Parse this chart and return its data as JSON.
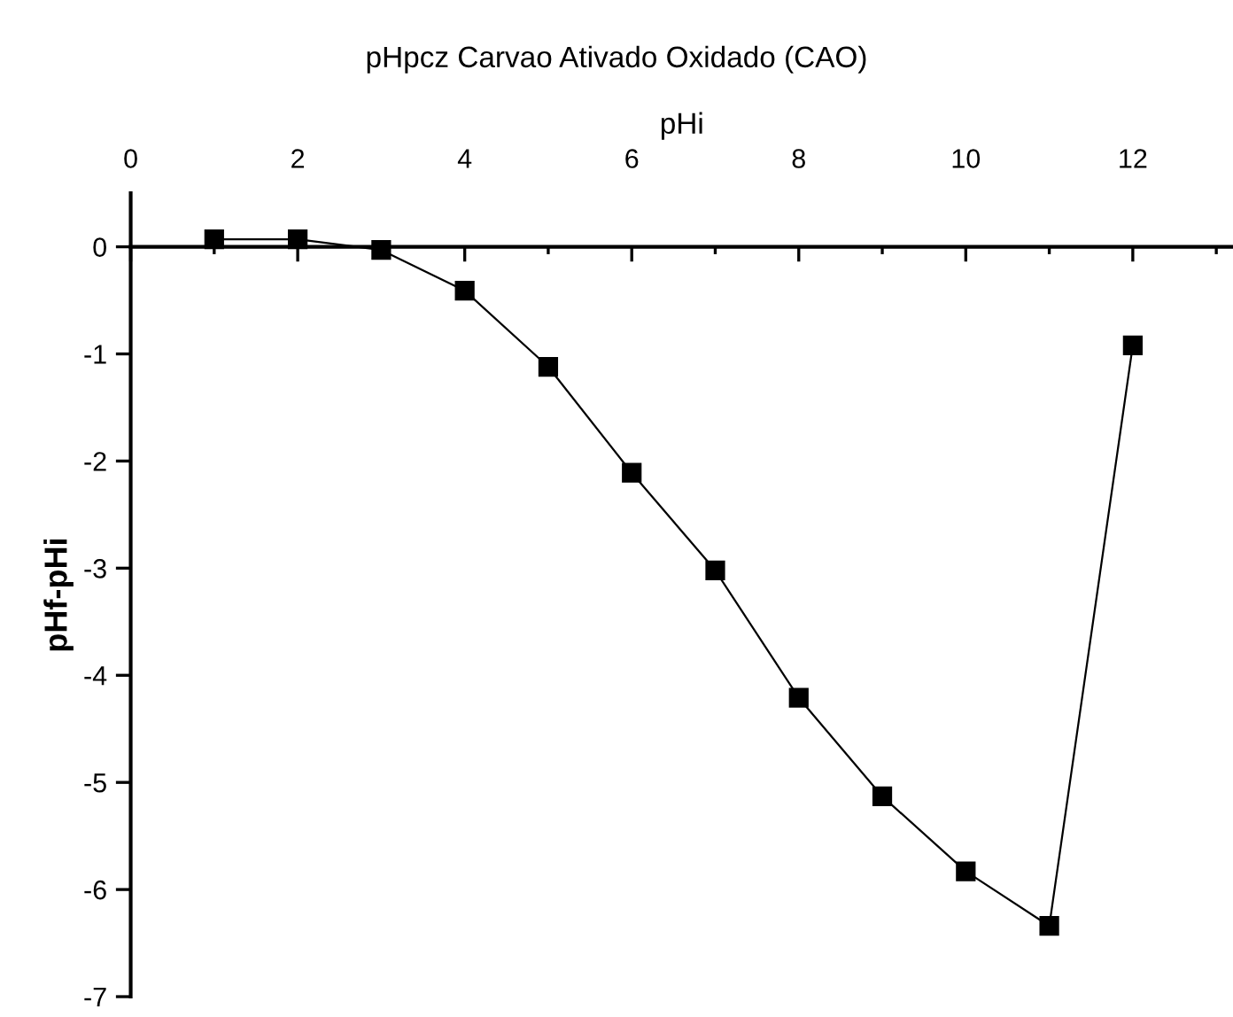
{
  "chart_data": {
    "type": "line",
    "title": "pHpcz Carvao Ativado Oxidado (CAO)",
    "xlabel": "pHi",
    "ylabel": "pHf-pHi",
    "x": [
      1,
      2,
      3,
      4,
      5,
      6,
      7,
      8,
      9,
      10,
      11,
      12
    ],
    "series": [
      {
        "color": "#000000",
        "values": [
          0.07,
          0.07,
          -0.03,
          -0.41,
          -1.12,
          -2.11,
          -3.02,
          -4.21,
          -5.13,
          -5.83,
          -6.34,
          -0.92
        ]
      }
    ],
    "marker": "square",
    "line_style": "solid",
    "legend": false,
    "xlim": [
      0,
      13.2
    ],
    "xticks": [
      0,
      2,
      4,
      6,
      8,
      10,
      12
    ],
    "ylim": [
      -7,
      0.5
    ],
    "yticks": [
      -7,
      -6,
      -5,
      -4,
      -3,
      -2,
      -1,
      0
    ]
  }
}
